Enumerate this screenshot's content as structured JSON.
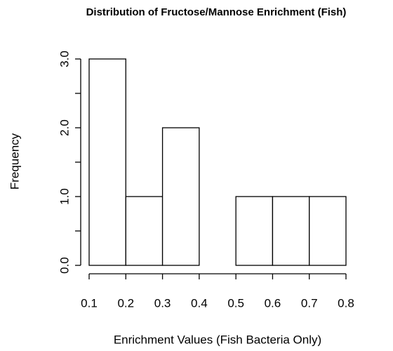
{
  "chart_data": {
    "type": "histogram",
    "title": "Distribution of Fructose/Mannose Enrichment (Fish)",
    "xlabel": "Enrichment Values (Fish Bacteria Only)",
    "ylabel": "Frequency",
    "bins": [
      0.1,
      0.2,
      0.3,
      0.4,
      0.5,
      0.6,
      0.7,
      0.8
    ],
    "counts": [
      3,
      1,
      2,
      0,
      1,
      1,
      1
    ],
    "color": "#ffffff",
    "xlim": [
      0.1,
      0.8
    ],
    "xticks": [
      0.1,
      0.2,
      0.3,
      0.4,
      0.5,
      0.6,
      0.7,
      0.8
    ],
    "ylim": [
      0,
      3
    ],
    "yticks": [
      {
        "value": 0,
        "label": "0.0"
      },
      {
        "value": 1,
        "label": "1.0"
      },
      {
        "value": 2,
        "label": "2.0"
      },
      {
        "value": 3,
        "label": "3.0"
      }
    ],
    "yminor_ticks": [
      0.5,
      1.5,
      2.5
    ]
  }
}
